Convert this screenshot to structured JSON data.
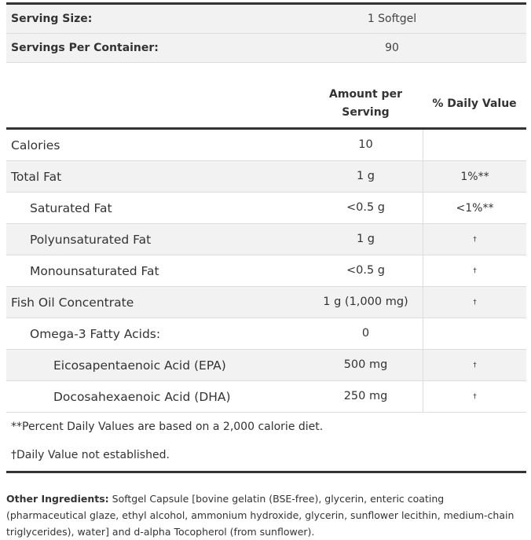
{
  "serving": [
    {
      "label": "Serving Size:",
      "value": "1 Softgel"
    },
    {
      "label": "Servings Per Container:",
      "value": "90"
    }
  ],
  "header": {
    "amount": "Amount per Serving",
    "daily": "% Daily Value"
  },
  "rows": [
    {
      "name": "Calories",
      "amount": "10",
      "dv": "",
      "indent": 0
    },
    {
      "name": "Total Fat",
      "amount": "1 g",
      "dv": "1%**",
      "indent": 0
    },
    {
      "name": "Saturated Fat",
      "amount": "<0.5 g",
      "dv": "<1%**",
      "indent": 1
    },
    {
      "name": "Polyunsaturated Fat",
      "amount": "1 g",
      "dv": "†",
      "indent": 1
    },
    {
      "name": "Monounsaturated Fat",
      "amount": "<0.5 g",
      "dv": "†",
      "indent": 1
    },
    {
      "name": "Fish Oil Concentrate",
      "amount": "1 g (1,000 mg)",
      "dv": "†",
      "indent": 0
    },
    {
      "name": "Omega-3 Fatty Acids:",
      "amount": "0",
      "dv": "",
      "indent": 1
    },
    {
      "name": "Eicosapentaenoic Acid (EPA)",
      "amount": "500 mg",
      "dv": "†",
      "indent": 2
    },
    {
      "name": "Docosahexaenoic Acid (DHA)",
      "amount": "250 mg",
      "dv": "†",
      "indent": 2
    }
  ],
  "footnotes": [
    "**Percent Daily Values are based on a 2,000 calorie diet.",
    "†Daily Value not established."
  ],
  "ingredients": {
    "label": "Other Ingredients:",
    "text": " Softgel Capsule [bovine gelatin (BSE-free), glycerin, enteric coating (pharmaceutical glaze, ethyl alcohol, ammonium hydroxide, glycerin, sunflower lecithin, medium-chain triglycerides), water] and d-alpha Tocopherol (from sunflower)."
  }
}
